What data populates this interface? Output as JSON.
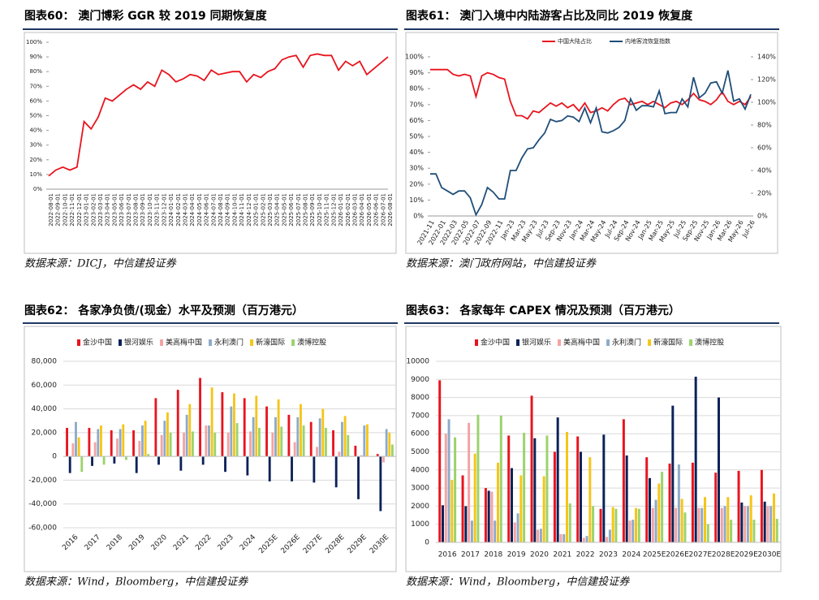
{
  "chart_data": [
    {
      "type": "line",
      "title": "图表60：  澳门博彩 GGR 较 2019 同期恢复度",
      "source": "数据来源：DICJ，中信建投证券",
      "categories": [
        "2022-08-01",
        "2022-09-01",
        "2022-10-01",
        "2022-11-01",
        "2022-12-01",
        "2023-01-01",
        "2023-02-01",
        "2023-03-01",
        "2023-04-01",
        "2023-05-01",
        "2023-06-01",
        "2023-07-01",
        "2023-08-01",
        "2023-09-01",
        "2023-10-01",
        "2023-11-01",
        "2023-12-01",
        "2024-01-01",
        "2024-02-01",
        "2024-03-01",
        "2024-04-01",
        "2024-05-01",
        "2024-06-01",
        "2024-07-01",
        "2024-08-01",
        "2024-09-01",
        "2024-10-01",
        "2024-11-01",
        "2024-12-01",
        "2025-01-01",
        "2025-02-01",
        "2025-03-01",
        "2025-04-01",
        "2025-05-01",
        "2025-06-01",
        "2025-07-01",
        "2025-08-01",
        "2025-09-01",
        "2025-10-01",
        "2025-11-01",
        "2025-12-01",
        "2026-01-01",
        "2026-02-01",
        "2026-03-01",
        "2026-04-01",
        "2026-05-01",
        "2026-06-01",
        "2026-07-01",
        "2026-08-01"
      ],
      "values": [
        9,
        13,
        15,
        13,
        15,
        46,
        41,
        49,
        62,
        60,
        64,
        68,
        71,
        68,
        73,
        70,
        81,
        78,
        73,
        75,
        78,
        77,
        74,
        81,
        78,
        79,
        80,
        80,
        73,
        78,
        76,
        80,
        82,
        88,
        90,
        91,
        83,
        91,
        92,
        91,
        91,
        81,
        87,
        84,
        87,
        78,
        82,
        86,
        90
      ],
      "color": "#e8141e",
      "grid": false,
      "ylim": [
        0,
        100
      ],
      "yticks": [
        {
          "value": 0,
          "label": "0%"
        },
        {
          "value": 10,
          "label": "10%"
        },
        {
          "value": 20,
          "label": "20%"
        },
        {
          "value": 30,
          "label": "30%"
        },
        {
          "value": 40,
          "label": "40%"
        },
        {
          "value": 50,
          "label": "50%"
        },
        {
          "value": 60,
          "label": "60%"
        },
        {
          "value": 70,
          "label": "70%"
        },
        {
          "value": 80,
          "label": "80%"
        },
        {
          "value": 90,
          "label": "90%"
        },
        {
          "value": 100,
          "label": "100%"
        }
      ]
    },
    {
      "type": "line",
      "title": "图表61：  澳门入境中内陆游客占比及同比 2019 恢复度",
      "source": "数据来源：澳门政府网站，中信建投证券",
      "categories": [
        "2021-11",
        null,
        "2022-01",
        null,
        "2022-03",
        null,
        "2022-05",
        null,
        "2022-07",
        null,
        "2022-09",
        null,
        "2022-11",
        null,
        "Jan-23",
        null,
        "Mar-23",
        null,
        "May-23",
        null,
        "Jul-23",
        null,
        "Sep-23",
        null,
        "Nov-23",
        null,
        "Jan-24",
        null,
        "Mar-24",
        null,
        "May-24",
        null,
        "Jul-24",
        null,
        "Sep-24",
        null,
        "Nov-24",
        null,
        "Jan-25",
        null,
        "Mar-25",
        null,
        "May-25",
        null,
        "Jul-25",
        null,
        "Sep-25",
        null,
        "Nov-25",
        null,
        "Jan-26",
        null,
        "Mar-26",
        null,
        "May-26",
        null,
        "Jul-26"
      ],
      "series": [
        {
          "name": "中国大陆占比",
          "color": "#e8141e",
          "values": [
            92,
            92,
            92,
            92,
            89,
            88,
            89,
            88,
            75,
            88,
            90,
            89,
            87,
            86,
            72,
            63,
            63,
            61,
            66,
            65,
            68,
            71,
            69,
            71,
            68,
            70,
            66,
            71,
            65,
            66,
            68,
            66,
            70,
            73,
            74,
            70,
            71,
            72,
            70,
            72,
            70,
            68,
            71,
            72,
            70,
            73,
            77,
            73,
            72,
            70,
            73,
            78,
            72,
            70,
            72,
            70,
            75
          ]
        },
        {
          "name": "内地客流恢复指数",
          "color": "#1f4e79",
          "axis": "y2",
          "values": [
            37,
            37,
            25,
            22,
            19,
            22,
            22,
            16,
            1,
            10,
            25,
            21,
            15,
            15,
            40,
            40,
            51,
            59,
            60,
            67,
            73,
            85,
            83,
            84,
            88,
            87,
            83,
            95,
            82,
            95,
            74,
            73,
            75,
            78,
            84,
            103,
            93,
            97,
            97,
            96,
            110,
            90,
            91,
            91,
            103,
            96,
            122,
            104,
            108,
            117,
            118,
            108,
            128,
            101,
            103,
            94,
            107
          ]
        }
      ],
      "legend": "top",
      "grid": false,
      "ylim": [
        0,
        100
      ],
      "yticks": [
        {
          "value": 0,
          "label": "0%"
        },
        {
          "value": 10,
          "label": "10%"
        },
        {
          "value": 20,
          "label": "20%"
        },
        {
          "value": 30,
          "label": "30%"
        },
        {
          "value": 40,
          "label": "40%"
        },
        {
          "value": 50,
          "label": "50%"
        },
        {
          "value": 60,
          "label": "60%"
        },
        {
          "value": 70,
          "label": "70%"
        },
        {
          "value": 80,
          "label": "80%"
        },
        {
          "value": 90,
          "label": "90%"
        },
        {
          "value": 100,
          "label": "100%"
        }
      ],
      "y2lim": [
        0,
        140
      ],
      "y2ticks": [
        {
          "value": 0,
          "label": "0%"
        },
        {
          "value": 20,
          "label": "20%"
        },
        {
          "value": 40,
          "label": "40%"
        },
        {
          "value": 60,
          "label": "60%"
        },
        {
          "value": 80,
          "label": "80%"
        },
        {
          "value": 100,
          "label": "100%"
        },
        {
          "value": 120,
          "label": "120%"
        },
        {
          "value": 140,
          "label": "140%"
        }
      ]
    },
    {
      "type": "bar",
      "title": "图表62：  各家净负债/(现金）水平及预测（百万港元）",
      "source": "数据来源：Wind，Bloomberg，中信建投证券",
      "categories": [
        "2016",
        "2017",
        "2018",
        "2019",
        "2020",
        "2021",
        "2022",
        "2023",
        "2024",
        "2025E",
        "2026E",
        "2027E",
        "2028E",
        "2029E",
        "2030E"
      ],
      "series": [
        {
          "name": "金沙中国",
          "color": "#e8141e",
          "values": [
            24000,
            24000,
            22000,
            22000,
            49000,
            56000,
            66000,
            54000,
            49000,
            42000,
            35000,
            29000,
            22000,
            9000,
            2000
          ]
        },
        {
          "name": "银河娱乐",
          "color": "#0b2158",
          "values": [
            -14000,
            -8000,
            -6000,
            -14000,
            -7000,
            -12000,
            -7000,
            -13000,
            -16000,
            -21000,
            -21000,
            -22000,
            -26000,
            -36000,
            -46000
          ]
        },
        {
          "name": "美高梅中国",
          "color": "#f4a3a3",
          "values": [
            11000,
            12000,
            15000,
            13000,
            18000,
            20000,
            26000,
            20000,
            21000,
            20000,
            12000,
            8000,
            4000,
            1000,
            -5000
          ]
        },
        {
          "name": "永利澳门",
          "color": "#8eaac9",
          "values": [
            29000,
            23000,
            23000,
            26000,
            30000,
            35000,
            26000,
            42000,
            33000,
            33000,
            33000,
            32000,
            29000,
            26000,
            23000
          ]
        },
        {
          "name": "新濠国际",
          "color": "#f5c518",
          "values": [
            16000,
            26000,
            27000,
            30000,
            37000,
            44000,
            58000,
            53000,
            51000,
            48000,
            44000,
            40000,
            34000,
            27000,
            20000
          ]
        },
        {
          "name": "澳博控股",
          "color": "#9bd36b",
          "values": [
            -13000,
            -7000,
            -3000,
            2000,
            20000,
            21000,
            20000,
            28000,
            24000,
            25000,
            26000,
            24000,
            18000,
            0,
            10000
          ]
        }
      ],
      "legend": "top",
      "grid": true,
      "ylim": [
        -60000,
        80000
      ],
      "yticks": [
        {
          "value": -60000,
          "label": "-60,000"
        },
        {
          "value": -40000,
          "label": "-40,000"
        },
        {
          "value": -20000,
          "label": "-20,000"
        },
        0,
        {
          "value": 20000,
          "label": "20,000"
        },
        {
          "value": 40000,
          "label": "40,000"
        },
        {
          "value": 60000,
          "label": "60,000"
        },
        {
          "value": 80000,
          "label": "80,000"
        }
      ]
    },
    {
      "type": "bar",
      "title": "图表63：  各家每年 CAPEX 情况及预测（百万港元）",
      "source": "数据来源：Wind，Bloomberg，中信建投证券",
      "categories": [
        "2016",
        "2017",
        "2018",
        "2019",
        "2020",
        "2021",
        "2022",
        "2023",
        "2024",
        "2025E",
        "2026E",
        "2027E",
        "2028E",
        "2029E",
        "2030E"
      ],
      "series": [
        {
          "name": "金沙中国",
          "color": "#e8141e",
          "values": [
            8950,
            3700,
            3000,
            5900,
            8100,
            5000,
            5850,
            1850,
            6800,
            4700,
            4350,
            4400,
            3850,
            3950,
            4000
          ]
        },
        {
          "name": "银河娱乐",
          "color": "#0b2158",
          "values": [
            2050,
            2000,
            2850,
            4100,
            5750,
            6900,
            5000,
            5950,
            4800,
            3550,
            7550,
            9150,
            8000,
            2200,
            2250
          ]
        },
        {
          "name": "美高梅中国",
          "color": "#f4a3a3",
          "values": [
            6000,
            6600,
            2800,
            1100,
            700,
            450,
            250,
            300,
            1200,
            1900,
            1900,
            1900,
            1900,
            2000,
            2000
          ]
        },
        {
          "name": "永利澳门",
          "color": "#8eaac9",
          "values": [
            6800,
            1200,
            1200,
            1600,
            750,
            450,
            350,
            700,
            1250,
            2350,
            4300,
            1900,
            2000,
            2000,
            2000
          ]
        },
        {
          "name": "新濠国际",
          "color": "#f5c518",
          "values": [
            3450,
            4900,
            4400,
            3700,
            3650,
            6100,
            4700,
            1950,
            1900,
            3250,
            2400,
            2500,
            2500,
            2600,
            2700
          ]
        },
        {
          "name": "澳博控股",
          "color": "#9bd36b",
          "values": [
            5800,
            7050,
            7000,
            6050,
            5900,
            2150,
            2000,
            1850,
            1850,
            3900,
            1650,
            1000,
            1250,
            1250,
            1300
          ]
        }
      ],
      "legend": "top",
      "grid": true,
      "ylim": [
        0,
        10000
      ],
      "yticks": [
        0,
        1000,
        2000,
        3000,
        4000,
        5000,
        6000,
        7000,
        8000,
        9000,
        10000
      ]
    }
  ]
}
